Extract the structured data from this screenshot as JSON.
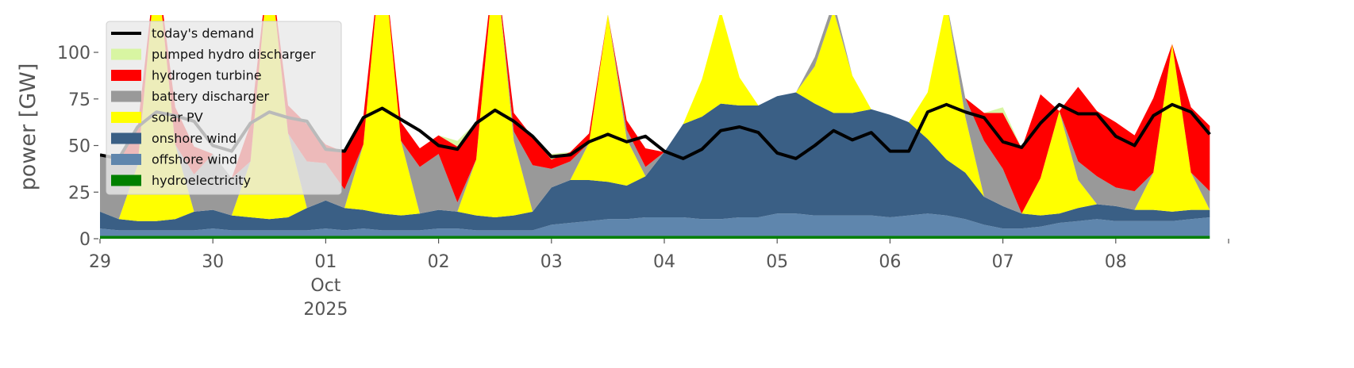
{
  "chart_data": {
    "type": "area",
    "y_label": "power [GW]",
    "x": [
      0,
      4,
      8,
      12,
      16,
      20,
      24,
      28,
      32,
      36,
      40,
      44,
      48,
      52,
      56,
      60,
      64,
      68,
      72,
      76,
      80,
      84,
      88,
      92,
      96,
      100,
      104,
      108,
      112,
      116,
      120,
      124,
      128,
      132,
      136,
      140,
      144,
      148,
      152,
      156,
      160,
      164,
      168,
      172,
      176,
      180,
      184,
      188,
      192,
      196,
      200,
      204,
      208,
      212,
      216,
      220,
      224,
      228,
      232,
      236
    ],
    "xlim": [
      0,
      240
    ],
    "xticks": [
      {
        "value": 0,
        "label": "29"
      },
      {
        "value": 24,
        "label": "30"
      },
      {
        "value": 48,
        "label": "01\nOct\n2025"
      },
      {
        "value": 72,
        "label": "02"
      },
      {
        "value": 96,
        "label": "03"
      },
      {
        "value": 120,
        "label": "04"
      },
      {
        "value": 144,
        "label": "05"
      },
      {
        "value": 168,
        "label": "06"
      },
      {
        "value": 192,
        "label": "07"
      },
      {
        "value": 216,
        "label": "08"
      }
    ],
    "ylim": [
      0,
      120
    ],
    "yticks": [
      0,
      25,
      50,
      75,
      100
    ],
    "legend": "upper left",
    "series": [
      {
        "name": "today's demand",
        "type": "line",
        "color": "#000000",
        "values": [
          45,
          43,
          60,
          68,
          66,
          63,
          50,
          47,
          62,
          68,
          65,
          63,
          48,
          47,
          65,
          70,
          64,
          58,
          50,
          48,
          62,
          69,
          63,
          55,
          44,
          45,
          52,
          56,
          52,
          55,
          47,
          43,
          48,
          58,
          60,
          57,
          46,
          43,
          50,
          58,
          53,
          57,
          47,
          47,
          68,
          72,
          68,
          65,
          52,
          49,
          62,
          72,
          67,
          67,
          55,
          50,
          66,
          72,
          68,
          56
        ]
      },
      {
        "name": "pumped hydro discharger",
        "type": "area",
        "color": "#d8f5a2",
        "values": [
          0,
          0,
          0,
          0,
          0,
          0,
          0,
          0,
          0,
          0,
          0,
          0,
          0,
          0,
          0,
          0,
          0,
          0,
          0,
          3,
          0,
          0,
          0,
          0,
          3,
          0,
          0,
          0,
          0,
          0,
          0,
          0,
          0,
          0,
          0,
          0,
          0,
          0,
          0,
          0,
          0,
          0,
          0,
          0,
          0,
          0,
          0,
          0,
          3,
          0,
          0,
          0,
          0,
          0,
          0,
          0,
          0,
          0,
          0,
          0
        ]
      },
      {
        "name": "hydrogen turbine",
        "type": "area",
        "color": "#ff0000",
        "values": [
          0,
          0,
          20,
          0,
          20,
          15,
          0,
          0,
          20,
          0,
          15,
          20,
          10,
          20,
          15,
          0,
          10,
          10,
          10,
          30,
          20,
          0,
          10,
          15,
          5,
          5,
          5,
          0,
          5,
          10,
          0,
          0,
          0,
          0,
          0,
          0,
          0,
          0,
          0,
          0,
          0,
          0,
          0,
          0,
          0,
          0,
          0,
          15,
          30,
          35,
          45,
          0,
          40,
          35,
          35,
          30,
          40,
          0,
          35,
          35
        ]
      },
      {
        "name": "battery discharger",
        "type": "area",
        "color": "#999999",
        "values": [
          30,
          33,
          0,
          0,
          0,
          20,
          30,
          20,
          0,
          0,
          0,
          25,
          20,
          10,
          0,
          0,
          0,
          25,
          30,
          5,
          0,
          0,
          5,
          25,
          10,
          10,
          0,
          0,
          5,
          5,
          0,
          0,
          0,
          0,
          0,
          0,
          0,
          0,
          5,
          5,
          0,
          0,
          0,
          0,
          0,
          0,
          10,
          30,
          20,
          0,
          0,
          0,
          10,
          15,
          10,
          10,
          0,
          0,
          0,
          10
        ]
      },
      {
        "name": "solar PV",
        "type": "area",
        "color": "#ffff00",
        "values": [
          0,
          0,
          30,
          140,
          40,
          0,
          0,
          0,
          30,
          140,
          45,
          0,
          0,
          0,
          35,
          145,
          40,
          0,
          0,
          0,
          30,
          140,
          40,
          0,
          0,
          0,
          20,
          90,
          25,
          0,
          0,
          0,
          20,
          50,
          15,
          0,
          0,
          0,
          20,
          55,
          20,
          0,
          0,
          0,
          25,
          85,
          30,
          0,
          0,
          0,
          20,
          55,
          15,
          0,
          0,
          0,
          20,
          90,
          20,
          0
        ]
      },
      {
        "name": "onshore wind",
        "type": "area",
        "color": "#3a5f85",
        "values": [
          9,
          6,
          5,
          5,
          6,
          10,
          10,
          8,
          7,
          6,
          7,
          12,
          15,
          12,
          10,
          9,
          8,
          9,
          10,
          9,
          8,
          7,
          8,
          10,
          20,
          23,
          22,
          20,
          18,
          22,
          35,
          50,
          55,
          62,
          60,
          60,
          63,
          65,
          60,
          55,
          55,
          57,
          55,
          50,
          40,
          30,
          25,
          15,
          12,
          8,
          6,
          5,
          7,
          8,
          8,
          6,
          6,
          5,
          5,
          4
        ]
      },
      {
        "name": "offshore wind",
        "type": "area",
        "color": "#5f86ad",
        "values": [
          4,
          3,
          3,
          3,
          3,
          3,
          4,
          3,
          3,
          3,
          3,
          3,
          4,
          3,
          4,
          3,
          3,
          3,
          4,
          4,
          3,
          3,
          3,
          3,
          6,
          7,
          8,
          9,
          9,
          10,
          10,
          10,
          9,
          9,
          10,
          10,
          12,
          12,
          11,
          11,
          11,
          11,
          10,
          11,
          12,
          11,
          9,
          6,
          4,
          4,
          5,
          7,
          8,
          9,
          8,
          8,
          8,
          8,
          9,
          10
        ]
      },
      {
        "name": "hydroelectricity",
        "type": "area",
        "color": "#008000",
        "values": [
          1.5,
          1.5,
          1.5,
          1.5,
          1.5,
          1.5,
          1.5,
          1.5,
          1.5,
          1.5,
          1.5,
          1.5,
          1.5,
          1.5,
          1.5,
          1.5,
          1.5,
          1.5,
          1.5,
          1.5,
          1.5,
          1.5,
          1.5,
          1.5,
          1.5,
          1.5,
          1.5,
          1.5,
          1.5,
          1.5,
          1.5,
          1.5,
          1.5,
          1.5,
          1.5,
          1.5,
          1.5,
          1.5,
          1.5,
          1.5,
          1.5,
          1.5,
          1.5,
          1.5,
          1.5,
          1.5,
          1.5,
          1.5,
          1.5,
          1.5,
          1.5,
          1.5,
          1.5,
          1.5,
          1.5,
          1.5,
          1.5,
          1.5,
          1.5,
          1.5
        ]
      }
    ]
  }
}
